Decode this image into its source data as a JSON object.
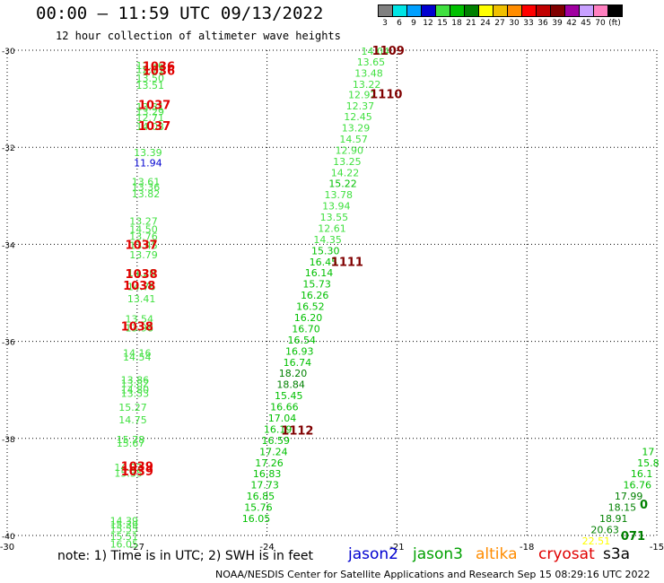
{
  "header": {
    "title": "00:00 — 11:59 UTC 09/13/2022",
    "subtitle": "12 hour collection of altimeter wave heights"
  },
  "colorbar": {
    "labels": [
      "3",
      "6",
      "9",
      "12",
      "15",
      "18",
      "21",
      "24",
      "27",
      "30",
      "33",
      "36",
      "39",
      "42",
      "45",
      "70",
      "(ft)"
    ],
    "colors": [
      "#808080",
      "#00e5e5",
      "#00a0ff",
      "#0000d0",
      "#40e040",
      "#00c000",
      "#008000",
      "#ffff00",
      "#f0c000",
      "#ff8c00",
      "#ff0000",
      "#c00000",
      "#800000",
      "#a000a0",
      "#c8a0ff",
      "#ff80c0",
      "#000000"
    ]
  },
  "note": "note:  1) Time is in UTC;  2) SWH is in feet",
  "legend": [
    {
      "name": "jason2",
      "color": "#0000d0"
    },
    {
      "name": "jason3",
      "color": "#00a000"
    },
    {
      "name": "altika",
      "color": "#ff8c00"
    },
    {
      "name": "cryosat",
      "color": "#e00000"
    },
    {
      "name": "s3a",
      "color": "#000000"
    }
  ],
  "footer": "NOAA/NESDIS Center for Satellite Applications and Research     Sep 15 08:29:16 UTC 2022",
  "chart_data": {
    "type": "scatter",
    "xlim": [
      -30,
      -15
    ],
    "ylim": [
      -40,
      -30
    ],
    "xticks": [
      "-30",
      "-27",
      "-24",
      "-21",
      "-18",
      "-15"
    ],
    "xtick_values": [
      -30,
      -27,
      -24,
      -21,
      -18,
      -15
    ],
    "yticks": [
      "-30",
      "-32",
      "-34",
      "-36",
      "-38",
      "-40"
    ],
    "ytick_values": [
      -30,
      -32,
      -34,
      -36,
      -38,
      -40
    ],
    "grid": true,
    "points": [
      {
        "lon": -26.7,
        "lat": -30.3,
        "text": "12.36",
        "color": "#40e040"
      },
      {
        "lon": -26.7,
        "lat": -30.38,
        "text": "12.71",
        "color": "#40e040"
      },
      {
        "lon": -26.7,
        "lat": -30.55,
        "text": "13.50",
        "color": "#40e040"
      },
      {
        "lon": -26.7,
        "lat": -30.7,
        "text": "13.51",
        "color": "#40e040"
      },
      {
        "lon": -26.7,
        "lat": -31.15,
        "text": "13.31",
        "color": "#40e040"
      },
      {
        "lon": -26.7,
        "lat": -31.25,
        "text": "13.29",
        "color": "#40e040"
      },
      {
        "lon": -26.7,
        "lat": -31.37,
        "text": "12.71",
        "color": "#40e040"
      },
      {
        "lon": -26.7,
        "lat": -31.55,
        "text": "14.03",
        "color": "#40e040"
      },
      {
        "lon": -26.75,
        "lat": -32.09,
        "text": "13.39",
        "color": "#40e040"
      },
      {
        "lon": -26.75,
        "lat": -32.3,
        "text": "11.94",
        "color": "#0000d0"
      },
      {
        "lon": -26.8,
        "lat": -32.69,
        "text": "13.61",
        "color": "#40e040"
      },
      {
        "lon": -26.8,
        "lat": -32.8,
        "text": "13.36",
        "color": "#40e040"
      },
      {
        "lon": -26.8,
        "lat": -32.94,
        "text": "13.82",
        "color": "#40e040"
      },
      {
        "lon": -26.85,
        "lat": -33.5,
        "text": "13.27",
        "color": "#40e040"
      },
      {
        "lon": -26.85,
        "lat": -33.67,
        "text": "14.50",
        "color": "#40e040"
      },
      {
        "lon": -26.85,
        "lat": -33.82,
        "text": "13.76",
        "color": "#40e040"
      },
      {
        "lon": -26.85,
        "lat": -34.0,
        "text": "13.45",
        "color": "#40e040"
      },
      {
        "lon": -26.85,
        "lat": -34.2,
        "text": "13.79",
        "color": "#40e040"
      },
      {
        "lon": -26.9,
        "lat": -34.57,
        "text": "14.20",
        "color": "#40e040"
      },
      {
        "lon": -26.9,
        "lat": -34.85,
        "text": "14.76",
        "color": "#40e040"
      },
      {
        "lon": -26.9,
        "lat": -35.1,
        "text": "13.41",
        "color": "#40e040"
      },
      {
        "lon": -26.95,
        "lat": -35.52,
        "text": "13.54",
        "color": "#40e040"
      },
      {
        "lon": -26.95,
        "lat": -35.7,
        "text": "13.98",
        "color": "#40e040"
      },
      {
        "lon": -27.0,
        "lat": -36.22,
        "text": "14.16",
        "color": "#40e040"
      },
      {
        "lon": -27.0,
        "lat": -36.3,
        "text": "14.54",
        "color": "#40e040"
      },
      {
        "lon": -27.05,
        "lat": -36.77,
        "text": "13.86",
        "color": "#40e040"
      },
      {
        "lon": -27.05,
        "lat": -36.85,
        "text": "13.82",
        "color": "#40e040"
      },
      {
        "lon": -27.05,
        "lat": -36.98,
        "text": "14.80",
        "color": "#40e040"
      },
      {
        "lon": -27.05,
        "lat": -37.05,
        "text": "13.53",
        "color": "#40e040"
      },
      {
        "lon": -27.1,
        "lat": -37.34,
        "text": "15.27",
        "color": "#40e040"
      },
      {
        "lon": -27.1,
        "lat": -37.6,
        "text": "14.75",
        "color": "#40e040"
      },
      {
        "lon": -27.15,
        "lat": -38.0,
        "text": "15.78",
        "color": "#40e040"
      },
      {
        "lon": -27.15,
        "lat": -38.08,
        "text": "15.67",
        "color": "#40e040"
      },
      {
        "lon": -27.2,
        "lat": -38.58,
        "text": "14.92",
        "color": "#40e040"
      },
      {
        "lon": -27.2,
        "lat": -38.7,
        "text": "15.35",
        "color": "#40e040"
      },
      {
        "lon": -27.3,
        "lat": -39.68,
        "text": "14.39",
        "color": "#40e040"
      },
      {
        "lon": -27.3,
        "lat": -39.76,
        "text": "15.39",
        "color": "#40e040"
      },
      {
        "lon": -27.3,
        "lat": -39.84,
        "text": "15.55",
        "color": "#40e040"
      },
      {
        "lon": -27.3,
        "lat": -40.0,
        "text": "15.51",
        "color": "#40e040"
      },
      {
        "lon": -27.3,
        "lat": -40.16,
        "text": "16.05",
        "color": "#40e040"
      },
      {
        "lon": -21.5,
        "lat": -30.0,
        "text": "14.04",
        "color": "#40e040"
      },
      {
        "lon": -21.6,
        "lat": -30.22,
        "text": "13.65",
        "color": "#40e040"
      },
      {
        "lon": -21.65,
        "lat": -30.45,
        "text": "13.48",
        "color": "#40e040"
      },
      {
        "lon": -21.7,
        "lat": -30.68,
        "text": "13.22",
        "color": "#40e040"
      },
      {
        "lon": -21.8,
        "lat": -30.9,
        "text": "12.92",
        "color": "#40e040"
      },
      {
        "lon": -21.85,
        "lat": -31.13,
        "text": "12.37",
        "color": "#40e040"
      },
      {
        "lon": -21.9,
        "lat": -31.35,
        "text": "12.45",
        "color": "#40e040"
      },
      {
        "lon": -21.95,
        "lat": -31.58,
        "text": "13.29",
        "color": "#40e040"
      },
      {
        "lon": -22.0,
        "lat": -31.81,
        "text": "14.57",
        "color": "#40e040"
      },
      {
        "lon": -22.1,
        "lat": -32.04,
        "text": "12.90",
        "color": "#40e040"
      },
      {
        "lon": -22.15,
        "lat": -32.27,
        "text": "13.25",
        "color": "#40e040"
      },
      {
        "lon": -22.2,
        "lat": -32.5,
        "text": "14.22",
        "color": "#40e040"
      },
      {
        "lon": -22.25,
        "lat": -32.73,
        "text": "15.22",
        "color": "#00c000"
      },
      {
        "lon": -22.35,
        "lat": -32.96,
        "text": "13.78",
        "color": "#40e040"
      },
      {
        "lon": -22.4,
        "lat": -33.19,
        "text": "13.94",
        "color": "#40e040"
      },
      {
        "lon": -22.45,
        "lat": -33.42,
        "text": "13.55",
        "color": "#40e040"
      },
      {
        "lon": -22.5,
        "lat": -33.65,
        "text": "12.61",
        "color": "#40e040"
      },
      {
        "lon": -22.6,
        "lat": -33.88,
        "text": "14.35",
        "color": "#40e040"
      },
      {
        "lon": -22.65,
        "lat": -34.11,
        "text": "15.30",
        "color": "#00c000"
      },
      {
        "lon": -22.7,
        "lat": -34.34,
        "text": "16.45",
        "color": "#00c000"
      },
      {
        "lon": -22.8,
        "lat": -34.57,
        "text": "16.14",
        "color": "#00c000"
      },
      {
        "lon": -22.85,
        "lat": -34.8,
        "text": "15.73",
        "color": "#00c000"
      },
      {
        "lon": -22.9,
        "lat": -35.03,
        "text": "16.26",
        "color": "#00c000"
      },
      {
        "lon": -23.0,
        "lat": -35.26,
        "text": "16.52",
        "color": "#00c000"
      },
      {
        "lon": -23.05,
        "lat": -35.49,
        "text": "16.20",
        "color": "#00c000"
      },
      {
        "lon": -23.1,
        "lat": -35.72,
        "text": "16.70",
        "color": "#00c000"
      },
      {
        "lon": -23.2,
        "lat": -35.95,
        "text": "16.54",
        "color": "#00c000"
      },
      {
        "lon": -23.25,
        "lat": -36.18,
        "text": "16.93",
        "color": "#00c000"
      },
      {
        "lon": -23.3,
        "lat": -36.41,
        "text": "16.74",
        "color": "#00c000"
      },
      {
        "lon": -23.4,
        "lat": -36.64,
        "text": "18.20",
        "color": "#008000"
      },
      {
        "lon": -23.45,
        "lat": -36.87,
        "text": "18.84",
        "color": "#008000"
      },
      {
        "lon": -23.5,
        "lat": -37.1,
        "text": "15.45",
        "color": "#00c000"
      },
      {
        "lon": -23.6,
        "lat": -37.33,
        "text": "16.66",
        "color": "#00c000"
      },
      {
        "lon": -23.65,
        "lat": -37.56,
        "text": "17.04",
        "color": "#00c000"
      },
      {
        "lon": -23.75,
        "lat": -37.79,
        "text": "16.19",
        "color": "#00c000"
      },
      {
        "lon": -23.8,
        "lat": -38.02,
        "text": "16.59",
        "color": "#00c000"
      },
      {
        "lon": -23.85,
        "lat": -38.25,
        "text": "17.24",
        "color": "#00c000"
      },
      {
        "lon": -23.95,
        "lat": -38.48,
        "text": "17.26",
        "color": "#00c000"
      },
      {
        "lon": -24.0,
        "lat": -38.71,
        "text": "16.83",
        "color": "#00c000"
      },
      {
        "lon": -24.05,
        "lat": -38.94,
        "text": "17.73",
        "color": "#00c000"
      },
      {
        "lon": -24.15,
        "lat": -39.17,
        "text": "16.85",
        "color": "#00c000"
      },
      {
        "lon": -24.2,
        "lat": -39.4,
        "text": "15.76",
        "color": "#00c000"
      },
      {
        "lon": -24.25,
        "lat": -39.63,
        "text": "16.05",
        "color": "#00c000"
      },
      {
        "lon": -15.2,
        "lat": -38.25,
        "text": "17",
        "color": "#00c000"
      },
      {
        "lon": -15.2,
        "lat": -38.48,
        "text": "15.8",
        "color": "#00c000"
      },
      {
        "lon": -15.35,
        "lat": -38.71,
        "text": "16.1",
        "color": "#00c000"
      },
      {
        "lon": -15.45,
        "lat": -38.94,
        "text": "16.76",
        "color": "#00c000"
      },
      {
        "lon": -15.65,
        "lat": -39.17,
        "text": "17.99",
        "color": "#008000"
      },
      {
        "lon": -15.8,
        "lat": -39.4,
        "text": "18.15",
        "color": "#008000"
      },
      {
        "lon": -16.0,
        "lat": -39.63,
        "text": "18.91",
        "color": "#008000"
      },
      {
        "lon": -16.2,
        "lat": -39.86,
        "text": "20.63",
        "color": "#008000"
      },
      {
        "lon": -16.4,
        "lat": -40.09,
        "text": "22.51",
        "color": "#ffff00"
      }
    ],
    "markers": [
      {
        "lon": -26.5,
        "lat": -30.32,
        "text": "1036",
        "color": "#e00000"
      },
      {
        "lon": -26.5,
        "lat": -30.42,
        "text": "1036",
        "color": "#e00000"
      },
      {
        "lon": -26.6,
        "lat": -31.12,
        "text": "1037",
        "color": "#e00000"
      },
      {
        "lon": -26.6,
        "lat": -31.55,
        "text": "1037",
        "color": "#e00000"
      },
      {
        "lon": -26.9,
        "lat": -34.0,
        "text": "1037",
        "color": "#e00000"
      },
      {
        "lon": -26.9,
        "lat": -34.6,
        "text": "1038",
        "color": "#e00000"
      },
      {
        "lon": -26.95,
        "lat": -34.84,
        "text": "1038",
        "color": "#e00000"
      },
      {
        "lon": -27.0,
        "lat": -35.68,
        "text": "1038",
        "color": "#e00000"
      },
      {
        "lon": -27.0,
        "lat": -38.57,
        "text": "1039",
        "color": "#e00000"
      },
      {
        "lon": -27.0,
        "lat": -38.67,
        "text": "1039",
        "color": "#e00000"
      },
      {
        "lon": -21.2,
        "lat": -30.0,
        "text": "1109",
        "color": "#800000"
      },
      {
        "lon": -21.25,
        "lat": -30.9,
        "text": "1110",
        "color": "#800000"
      },
      {
        "lon": -22.15,
        "lat": -34.35,
        "text": "1111",
        "color": "#800000"
      },
      {
        "lon": -23.3,
        "lat": -37.83,
        "text": "1112",
        "color": "#800000"
      },
      {
        "lon": -15.3,
        "lat": -39.35,
        "text": "0",
        "color": "#008000"
      },
      {
        "lon": -15.55,
        "lat": -40.0,
        "text": "071",
        "color": "#008000"
      }
    ]
  }
}
